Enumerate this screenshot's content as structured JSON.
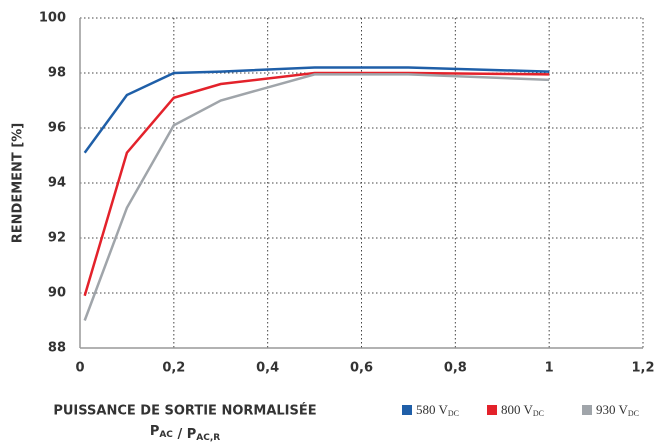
{
  "chart_data": {
    "type": "line",
    "ylabel": "RENDEMENT [%]",
    "xlabel": "PUISSANCE DE SORTIE NORMALISÉE",
    "xlabel_formula": [
      {
        "text": "P",
        "sub": "AC"
      },
      {
        "text": " / "
      },
      {
        "text": "P",
        "sub": "AC,R"
      }
    ],
    "x": [
      0.01,
      0.1,
      0.2,
      0.3,
      0.5,
      0.7,
      1
    ],
    "series": [
      {
        "name": "580 V",
        "name_sub": "DC",
        "color": "#1f5fa8",
        "values": [
          95.1,
          97.2,
          98.0,
          98.05,
          98.2,
          98.2,
          98.05
        ]
      },
      {
        "name": "800 V",
        "name_sub": "DC",
        "color": "#e3222b",
        "values": [
          89.9,
          95.1,
          97.1,
          97.6,
          98.0,
          98.0,
          97.95
        ]
      },
      {
        "name": "930 V",
        "name_sub": "DC",
        "color": "#a0a5aa",
        "values": [
          89.0,
          93.1,
          96.1,
          97.0,
          97.95,
          97.95,
          97.75
        ]
      }
    ],
    "xlim": [
      0,
      1.2
    ],
    "xticks": [
      0,
      {
        "value": 0.2,
        "label": "0,2"
      },
      {
        "value": 0.4,
        "label": "0,4"
      },
      {
        "value": 0.6,
        "label": "0,6"
      },
      {
        "value": 0.8,
        "label": "0,8"
      },
      1,
      {
        "value": 1.2,
        "label": "1,2"
      }
    ],
    "ylim": [
      88,
      100
    ],
    "yticks": [
      88,
      90,
      92,
      94,
      96,
      98,
      100
    ],
    "grid": true
  }
}
